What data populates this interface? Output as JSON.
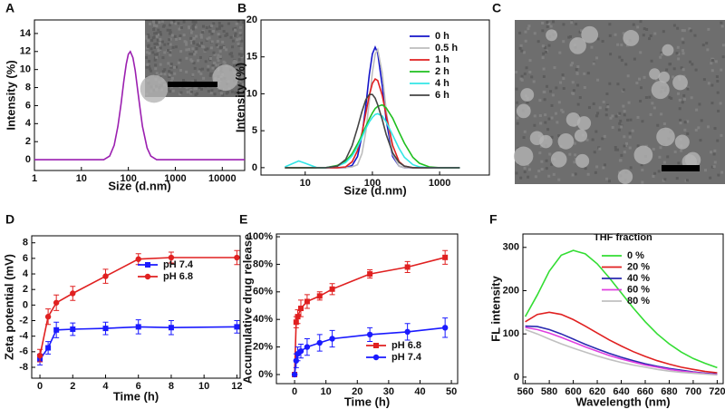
{
  "chart_data": [
    {
      "panel": "A",
      "type": "line",
      "x_label": "Size (d.nm)",
      "y_label": "Intensity (%)",
      "log_x": true,
      "xlim": [
        1,
        30000
      ],
      "ylim": [
        -1.2,
        15.5
      ],
      "xticks": [
        1,
        10,
        100,
        1000,
        10000
      ],
      "yticks": [
        0,
        2,
        4,
        6,
        8,
        10,
        12,
        14
      ],
      "x": [
        1,
        30,
        40,
        50,
        60,
        70,
        80,
        90,
        100,
        110,
        125,
        140,
        160,
        180,
        200,
        250,
        300,
        400,
        30000
      ],
      "series": [
        {
          "color": "#9b1fb0",
          "values": [
            0,
            0,
            0.4,
            1.6,
            3.7,
            6.2,
            8.7,
            10.6,
            11.7,
            12,
            11.3,
            9.9,
            7.5,
            5.4,
            3.7,
            1.3,
            0.4,
            0,
            0
          ]
        }
      ]
    },
    {
      "panel": "B",
      "type": "line",
      "x_label": "Size (d.nm)",
      "y_label": "Intensity (%)",
      "log_x": true,
      "xlim": [
        2.2,
        5500
      ],
      "ylim": [
        -1,
        20
      ],
      "xticks": [
        10,
        100,
        1000
      ],
      "yticks": [
        0,
        5,
        10,
        15,
        20
      ],
      "legend": "upper right",
      "x": [
        5,
        8,
        10,
        15,
        20,
        30,
        40,
        50,
        60,
        70,
        80,
        90,
        100,
        110,
        120,
        140,
        160,
        200,
        250,
        300,
        400,
        500,
        700,
        1000,
        2000
      ],
      "series": [
        {
          "name": "0 h",
          "color": "#1414c8",
          "values": [
            0,
            0,
            0,
            0,
            0,
            0,
            0,
            0.3,
            1.5,
            4.3,
            8.4,
            12.6,
            15.4,
            16.3,
            15.5,
            11.1,
            6.5,
            1.5,
            0.2,
            0,
            0,
            0,
            0,
            0,
            0
          ]
        },
        {
          "name": "0.5 h",
          "color": "#bdbdbd",
          "values": [
            0,
            0,
            0,
            0,
            0,
            0,
            0,
            0.1,
            0.4,
            1.9,
            4.9,
            9.0,
            12.9,
            15.4,
            16.0,
            12.8,
            7.8,
            1.8,
            0.2,
            0,
            0,
            0,
            0,
            0,
            0
          ]
        },
        {
          "name": "1 h",
          "color": "#e02020",
          "values": [
            0,
            0,
            0,
            0,
            0,
            0,
            0.1,
            0.8,
            2.3,
            4.7,
            7.4,
            9.8,
            11.4,
            12.0,
            11.8,
            9.8,
            7.1,
            3.0,
            0.8,
            0.2,
            0,
            0,
            0,
            0,
            0
          ]
        },
        {
          "name": "2 h",
          "color": "#1fbf1f",
          "values": [
            0,
            0,
            0,
            0,
            0,
            0.3,
            0.9,
            1.9,
            3.2,
            4.4,
            5.6,
            6.6,
            7.4,
            8.0,
            8.3,
            8.5,
            8.1,
            6.7,
            4.8,
            3.3,
            1.4,
            0.6,
            0.1,
            0,
            0
          ]
        },
        {
          "name": "4 h",
          "color": "#33e6e6",
          "values": [
            0.1,
            0.9,
            0.6,
            0,
            0,
            0.2,
            0.7,
            1.6,
            2.8,
            4.1,
            5.3,
            6.2,
            6.8,
            7.2,
            7.3,
            7.0,
            6.2,
            4.4,
            2.6,
            1.4,
            0.4,
            0.1,
            0,
            0,
            0
          ]
        },
        {
          "name": "6 h",
          "color": "#444444",
          "values": [
            0,
            0,
            0,
            0,
            0,
            0.2,
            1.1,
            3.0,
            5.4,
            7.6,
            9.2,
            9.9,
            9.9,
            9.4,
            8.5,
            6.5,
            4.5,
            2.0,
            0.7,
            0.2,
            0,
            0,
            0,
            0,
            0
          ]
        }
      ]
    },
    {
      "panel": "C",
      "type": "image"
    },
    {
      "panel": "D",
      "type": "errorline",
      "x_label": "Time (h)",
      "y_label": "Zeta potential (mV)",
      "xlim": [
        -0.5,
        12.2
      ],
      "ylim": [
        -9.4,
        8.9
      ],
      "xticks": [
        0,
        2,
        4,
        6,
        8,
        10,
        12
      ],
      "yticks": [
        -8,
        -6,
        -4,
        -2,
        0,
        2,
        4,
        6,
        8
      ],
      "legend": "center right",
      "x": [
        0,
        0.5,
        1,
        2,
        4,
        6,
        8,
        12
      ],
      "series": [
        {
          "name": "pH 7.4",
          "color": "#1a1aff",
          "marker": "square",
          "values": [
            -7,
            -5.5,
            -3.2,
            -3.1,
            -3,
            -2.8,
            -2.9,
            -2.8
          ],
          "errors": [
            0.7,
            0.8,
            1,
            0.8,
            0.8,
            0.9,
            0.9,
            0.8
          ]
        },
        {
          "name": "pH 6.8",
          "color": "#e02020",
          "marker": "circle",
          "values": [
            -6.5,
            -1.5,
            0.3,
            1.5,
            3.7,
            5.9,
            6.1,
            6.1
          ],
          "errors": [
            0.8,
            1,
            1,
            0.9,
            0.9,
            0.7,
            0.7,
            0.9
          ]
        }
      ]
    },
    {
      "panel": "E",
      "type": "errorline",
      "x_label": "Time (h)",
      "y_label": "Accumulative drug release",
      "xlim": [
        -5.8,
        52
      ],
      "ylim": [
        -6.6,
        102
      ],
      "xticks": [
        0,
        10,
        20,
        30,
        40,
        50
      ],
      "yticks": [
        {
          "value": 0,
          "label": "0%"
        },
        {
          "value": 20,
          "label": "20%"
        },
        {
          "value": 40,
          "label": "40%"
        },
        {
          "value": 60,
          "label": "60%"
        },
        {
          "value": 80,
          "label": "80%"
        },
        {
          "value": 100,
          "label": "100%"
        }
      ],
      "legend": "lower right",
      "x": [
        0,
        0.5,
        1,
        2,
        4,
        8,
        12,
        24,
        36,
        48
      ],
      "series": [
        {
          "name": "pH 6.8",
          "color": "#e02020",
          "marker": "square",
          "values": [
            0,
            38,
            42,
            48,
            53,
            57,
            62,
            73,
            78,
            85
          ],
          "errors": [
            0,
            4,
            5,
            6,
            5,
            3,
            4,
            3,
            4,
            5
          ]
        },
        {
          "name": "pH 7.4",
          "color": "#1a1aff",
          "marker": "circle",
          "values": [
            0,
            10,
            15,
            17,
            20,
            23,
            26,
            29,
            31,
            34
          ],
          "errors": [
            0,
            5,
            5,
            5,
            6,
            6,
            6,
            5,
            6,
            7
          ]
        }
      ]
    },
    {
      "panel": "F",
      "type": "line",
      "x_label": "Wavelength (nm)",
      "y_label": "FL intensity",
      "xlim": [
        558,
        725
      ],
      "ylim": [
        -15,
        331
      ],
      "xticks": [
        560,
        580,
        600,
        620,
        640,
        660,
        680,
        700,
        720
      ],
      "yticks": [
        0,
        100,
        200,
        300
      ],
      "legend": "upper right",
      "legend_title": "THF fraction",
      "x": [
        560,
        570,
        580,
        590,
        600,
        610,
        620,
        630,
        640,
        650,
        660,
        670,
        680,
        690,
        700,
        710,
        720
      ],
      "series": [
        {
          "name": "0 %",
          "color": "#33dd33",
          "values": [
            140,
            190,
            245,
            282,
            293,
            285,
            262,
            230,
            195,
            160,
            128,
            100,
            77,
            58,
            43,
            32,
            22
          ]
        },
        {
          "name": "20 %",
          "color": "#e02020",
          "values": [
            128,
            145,
            150,
            145,
            133,
            118,
            102,
            86,
            72,
            59,
            48,
            38,
            30,
            23,
            18,
            13,
            10
          ]
        },
        {
          "name": "40 %",
          "color": "#2a2ab0",
          "values": [
            118,
            117,
            110,
            100,
            88,
            76,
            65,
            55,
            46,
            38,
            31,
            25,
            20,
            16,
            12,
            9,
            7
          ]
        },
        {
          "name": "60 %",
          "color": "#e040e0",
          "values": [
            115,
            110,
            102,
            92,
            81,
            70,
            60,
            50,
            42,
            35,
            28,
            23,
            18,
            14,
            11,
            8,
            6
          ]
        },
        {
          "name": "80 %",
          "color": "#c0c0c0",
          "values": [
            110,
            100,
            88,
            77,
            67,
            58,
            49,
            41,
            34,
            28,
            23,
            18,
            14,
            11,
            9,
            7,
            5
          ]
        }
      ]
    }
  ]
}
